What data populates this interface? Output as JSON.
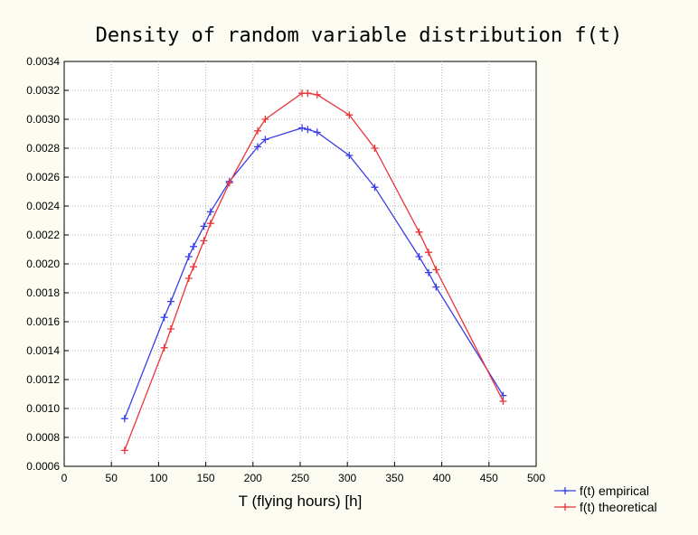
{
  "chart_data": {
    "type": "line",
    "title": "Density of random variable distribution f(t)",
    "xlabel": "T (flying hours) [h]",
    "ylabel": "",
    "xlim": [
      0,
      500
    ],
    "ylim": [
      0.0006,
      0.0034
    ],
    "x_ticks": [
      "0",
      "50",
      "100",
      "150",
      "200",
      "250",
      "300",
      "350",
      "400",
      "450",
      "500"
    ],
    "y_ticks": [
      "0.0006",
      "0.0008",
      "0.0010",
      "0.0012",
      "0.0014",
      "0.0016",
      "0.0018",
      "0.0020",
      "0.0022",
      "0.0024",
      "0.0026",
      "0.0028",
      "0.0030",
      "0.0032",
      "0.0034"
    ],
    "grid": true,
    "legend_position": "bottom-right",
    "series": [
      {
        "name": "f(t) empirical",
        "color": "#3a3ee6",
        "marker": "plus",
        "x": [
          64,
          106,
          113,
          132,
          137,
          148,
          155,
          175,
          205,
          213,
          252,
          258,
          268,
          302,
          329,
          376,
          386,
          394,
          465
        ],
        "y": [
          0.00093,
          0.00163,
          0.00174,
          0.00205,
          0.00212,
          0.00226,
          0.00236,
          0.00257,
          0.00281,
          0.00286,
          0.00294,
          0.00293,
          0.00291,
          0.00275,
          0.00253,
          0.00205,
          0.00194,
          0.00184,
          0.00109
        ]
      },
      {
        "name": "f(t) theoretical",
        "color": "#e8353a",
        "marker": "plus",
        "x": [
          64,
          106,
          113,
          132,
          137,
          148,
          155,
          175,
          205,
          213,
          252,
          258,
          268,
          302,
          329,
          376,
          386,
          394,
          465
        ],
        "y": [
          0.00071,
          0.00142,
          0.00155,
          0.0019,
          0.00198,
          0.00216,
          0.00228,
          0.00256,
          0.00292,
          0.003,
          0.00318,
          0.00318,
          0.00317,
          0.00303,
          0.0028,
          0.00222,
          0.00208,
          0.00196,
          0.00105
        ]
      }
    ]
  }
}
